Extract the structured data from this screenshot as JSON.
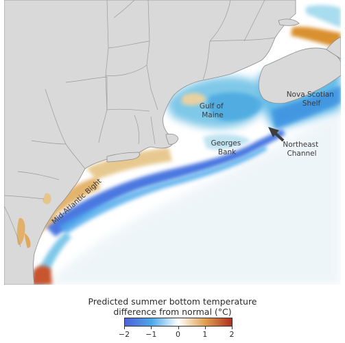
{
  "map": {
    "labels": {
      "gulf_of_maine": [
        "Gulf of",
        "Maine"
      ],
      "georges_bank": [
        "Georges",
        "Bank"
      ],
      "nova_scotian_shelf": [
        "Nova Scotian",
        "Shelf"
      ],
      "northeast_channel": [
        "Northeast",
        "Channel"
      ],
      "mid_atlantic_bight": "Mid-Atlantic Bight"
    }
  },
  "legend": {
    "title_line1": "Predicted summer bottom temperature",
    "title_line2": "difference from normal (°C)",
    "ticks": [
      "−2",
      "−1",
      "0",
      "1",
      "2"
    ],
    "range": [
      -2,
      2
    ],
    "colors": [
      "#5060d8",
      "#4aa8ea",
      "#ffffff",
      "#e0a050",
      "#b03020"
    ]
  }
}
